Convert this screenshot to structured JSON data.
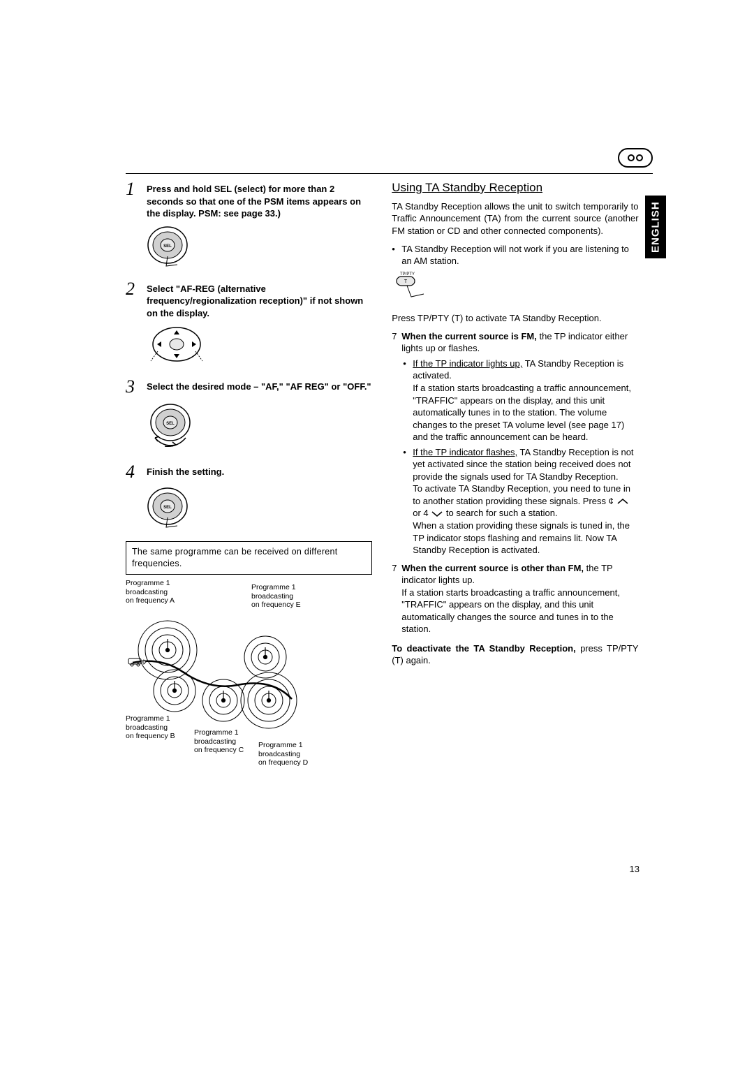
{
  "side_tab": "ENGLISH",
  "page_number": "13",
  "left": {
    "steps": [
      {
        "num": "1",
        "text": "Press and hold SEL (select) for more than 2 seconds so that one of the PSM items appears on the display. PSM: see page 33.)"
      },
      {
        "num": "2",
        "text": "Select \"AF-REG (alternative frequency/regionalization reception)\" if not shown on the display."
      },
      {
        "num": "3",
        "text": "Select the desired mode – \"AF,\" \"AF REG\" or \"OFF.\""
      },
      {
        "num": "4",
        "text": "Finish the setting."
      }
    ],
    "box": "The same programme can be received on different frequencies.",
    "diagram_labels": {
      "a": "Programme 1\nbroadcasting\non frequency A",
      "b": "Programme 1\nbroadcasting\non frequency B",
      "c": "Programme 1\nbroadcasting\non frequency C",
      "d": "Programme 1\nbroadcasting\non frequency D",
      "e": "Programme 1\nbroadcasting\non frequency E"
    }
  },
  "right": {
    "heading": "Using TA Standby Reception",
    "intro": "TA Standby Reception allows the unit to switch temporarily to Traffic Announcement (TA) from the current source (another FM station or CD and other connected components).",
    "note": "TA Standby Reception will not work if you are listening to an AM station.",
    "press": "Press TP/PTY (T) to activate TA Standby Reception.",
    "fm_lead_bold": "When the current source is FM,",
    "fm_lead_rest": " the TP indicator either lights up or flashes.",
    "fm_sub1_u": "If the TP indicator lights up,",
    "fm_sub1_rest": " TA Standby Reception is activated.",
    "fm_sub1_body": "If a station starts broadcasting a traffic announcement, \"TRAFFIC\" appears on the display, and this unit automatically tunes in to the station. The volume changes to the preset TA volume level (see page 17) and the traffic announcement can be heard.",
    "fm_sub2_u": "If the TP indicator flashes,",
    "fm_sub2_rest": " TA Standby Reception is not yet activated since the station being received does not provide the signals used for TA Standby Reception.",
    "fm_sub2_body1": "To activate TA Standby Reception, you need to tune in to another station providing these signals. Press ¢",
    "fm_sub2_body1b": " or 4",
    "fm_sub2_body1c": " to search for such a station.",
    "fm_sub2_body2": "When a station providing these signals is tuned in, the TP indicator stops flashing and remains lit. Now TA Standby Reception is activated.",
    "other_bold": "When the current source is other than FM,",
    "other_rest": " the TP indicator lights up.",
    "other_body": "If a station starts broadcasting a traffic announcement, \"TRAFFIC\" appears on the display, and this unit automatically changes the source and tunes in to the station.",
    "deact_bold": "To deactivate the TA Standby Reception,",
    "deact_rest": " press TP/PTY (T) again.",
    "button_label": "TP/PTY",
    "button_t": "T"
  }
}
